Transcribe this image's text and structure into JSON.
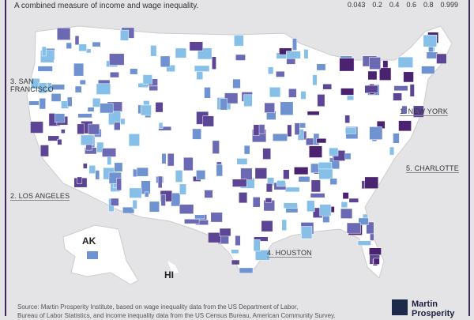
{
  "subtitle": "A combined measure of income and wage inequality.",
  "legend": {
    "values": [
      "0.043",
      "0.2",
      "0.4",
      "0.6",
      "0.8",
      "0.999"
    ],
    "colors": [
      "#86c0e8",
      "#6f92d0",
      "#6c69b4",
      "#5d4596",
      "#4b2270"
    ]
  },
  "labels": {
    "new_york": "1. NEW YORK",
    "los_angeles": "2. LOS ANGELES",
    "san_francisco_1": "3. SAN",
    "san_francisco_2": "FRANCISCO",
    "houston": "4. HOUSTON",
    "charlotte": "5. CHARLOTTE",
    "alaska": "AK",
    "hawaii": "HI"
  },
  "source": {
    "line1": "Source: Martin Prosperity Institute, based on wage inequality data from the US Department of Labor,",
    "line2": "Bureau of Labor Statistics, and income inequality data from the US Census Bureau, American Community Survey."
  },
  "logo": {
    "line1": "Martin",
    "line2": "Prosperity"
  }
}
